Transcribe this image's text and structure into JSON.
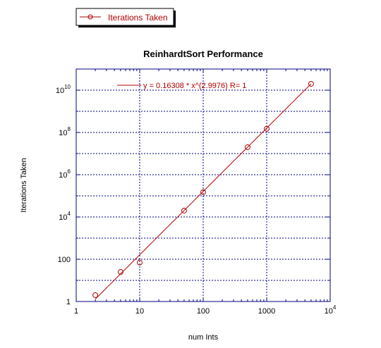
{
  "chart_data": {
    "type": "scatter",
    "title": "ReinhardtSort Performance",
    "xlabel": "num Ints",
    "ylabel": "Iterations Taken",
    "x_scale": "log",
    "y_scale": "log",
    "xlim": [
      1,
      10000
    ],
    "ylim": [
      1,
      100000000000
    ],
    "grid": true,
    "legend_position": "top-left, outside plot",
    "x_ticks": [
      {
        "value": 1,
        "label": "1"
      },
      {
        "value": 10,
        "label": "10"
      },
      {
        "value": 100,
        "label": "100"
      },
      {
        "value": 1000,
        "label": "1000"
      },
      {
        "value": 10000,
        "base": "10",
        "exp": "4"
      }
    ],
    "y_ticks": [
      {
        "value": 1,
        "label": "1"
      },
      {
        "value": 100,
        "label": "100"
      },
      {
        "value": 10000,
        "base": "10",
        "exp": "4"
      },
      {
        "value": 1000000,
        "base": "10",
        "exp": "6"
      },
      {
        "value": 100000000,
        "base": "10",
        "exp": "8"
      },
      {
        "value": 10000000000,
        "base": "10",
        "exp": "10"
      }
    ],
    "series": [
      {
        "name": "Iterations Taken",
        "color": "#b00000",
        "marker": "open-circle",
        "x": [
          2,
          5,
          10,
          50,
          100,
          500,
          1000,
          5000
        ],
        "y": [
          2,
          25,
          70,
          20000,
          150000,
          20000000,
          150000000,
          20000000000
        ]
      }
    ],
    "fit": {
      "label": "y = 0.16308 * x^(2.9976)   R= 1",
      "a": 0.16308,
      "b": 2.9976,
      "x_range": [
        2,
        5000
      ],
      "color": "#b00000"
    },
    "colors": {
      "frame": "#00007f",
      "grid": "#00007f",
      "series": "#b00000"
    }
  }
}
